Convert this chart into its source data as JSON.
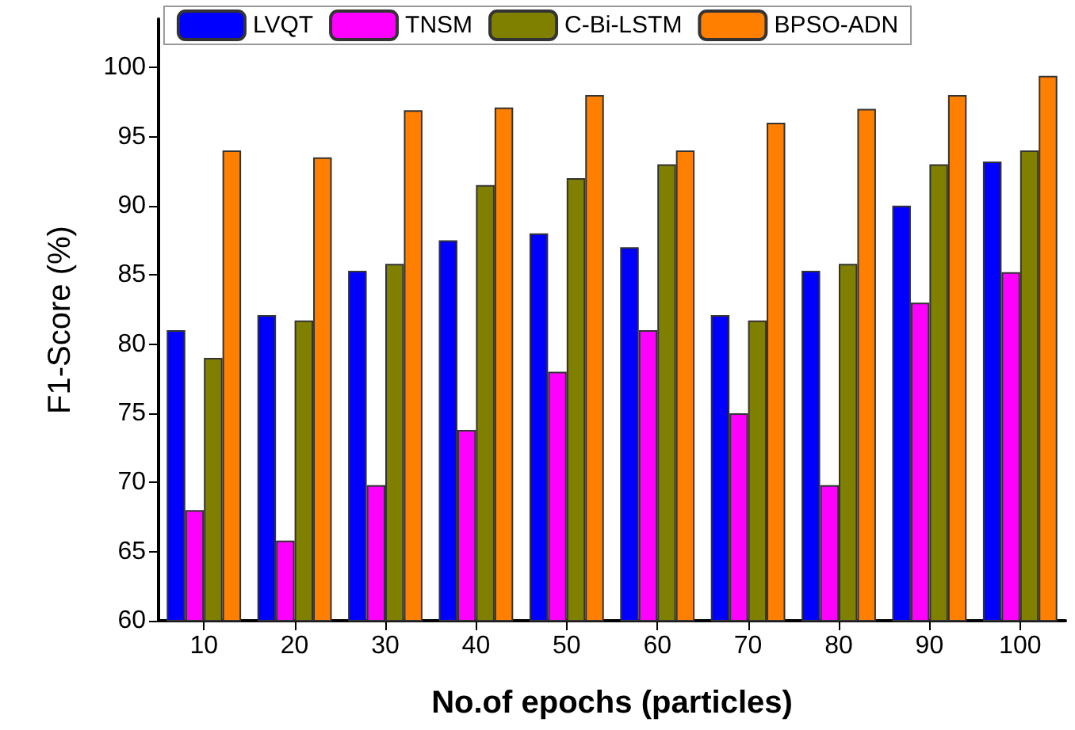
{
  "chart_data": {
    "type": "bar",
    "xlabel": "No.of epochs (particles)",
    "ylabel": "F1-Score (%)",
    "categories": [
      "10",
      "20",
      "30",
      "40",
      "50",
      "60",
      "70",
      "80",
      "90",
      "100"
    ],
    "series": [
      {
        "name": "LVQT",
        "color": "#0000ff",
        "values": [
          81,
          82.1,
          85.3,
          87.5,
          88,
          87,
          82.1,
          85.3,
          90,
          93.2
        ]
      },
      {
        "name": "TNSM",
        "color": "#ff00ff",
        "values": [
          68,
          65.8,
          69.8,
          73.8,
          78,
          81,
          75,
          69.8,
          83,
          85.2
        ]
      },
      {
        "name": "C-Bi-LSTM",
        "color": "#808000",
        "values": [
          79,
          81.7,
          85.8,
          91.5,
          92,
          93,
          81.7,
          85.8,
          93,
          94
        ]
      },
      {
        "name": "BPSO-ADN",
        "color": "#ff8000",
        "values": [
          94,
          93.5,
          96.9,
          97.1,
          98,
          94,
          96,
          97,
          98,
          99.4
        ]
      }
    ],
    "ylim": [
      60,
      103.5
    ],
    "yticks": [
      60,
      65,
      70,
      75,
      80,
      85,
      90,
      95,
      100
    ],
    "grid": false,
    "legend": "top"
  }
}
